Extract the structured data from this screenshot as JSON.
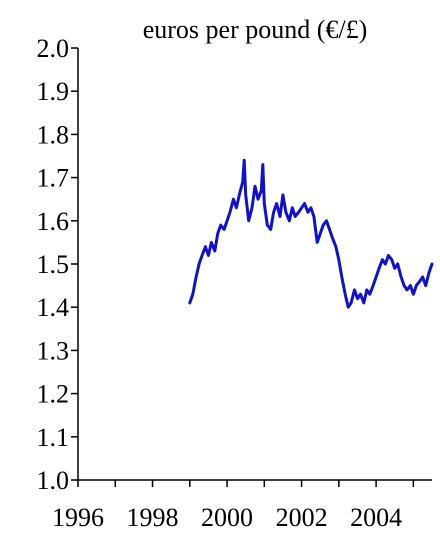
{
  "chart_data": {
    "type": "line",
    "title": "euros per pound (€/£)",
    "xlabel": "",
    "ylabel": "",
    "xlim": [
      1996,
      2005.5
    ],
    "ylim": [
      1.0,
      2.0
    ],
    "x_ticks": [
      1996,
      1998,
      2000,
      2002,
      2004
    ],
    "x_minor_ticks": [
      1997,
      1999,
      2001,
      2003,
      2005
    ],
    "y_ticks": [
      "1.0",
      "1.1",
      "1.2",
      "1.3",
      "1.4",
      "1.5",
      "1.6",
      "1.7",
      "1.8",
      "1.9",
      "2.0"
    ],
    "grid": false,
    "legend": "none",
    "series": [
      {
        "color": "#1010d0",
        "x": [
          1999.0,
          1999.08,
          1999.17,
          1999.25,
          1999.33,
          1999.42,
          1999.5,
          1999.58,
          1999.67,
          1999.75,
          1999.83,
          1999.92,
          2000.0,
          2000.08,
          2000.17,
          2000.25,
          2000.33,
          2000.42,
          2000.46,
          2000.5,
          2000.58,
          2000.67,
          2000.75,
          2000.83,
          2000.92,
          2000.96,
          2001.0,
          2001.08,
          2001.17,
          2001.25,
          2001.33,
          2001.42,
          2001.5,
          2001.58,
          2001.67,
          2001.75,
          2001.83,
          2001.92,
          2002.0,
          2002.08,
          2002.17,
          2002.25,
          2002.33,
          2002.42,
          2002.5,
          2002.58,
          2002.67,
          2002.75,
          2002.83,
          2002.92,
          2003.0,
          2003.08,
          2003.17,
          2003.25,
          2003.33,
          2003.42,
          2003.5,
          2003.58,
          2003.67,
          2003.75,
          2003.83,
          2003.92,
          2004.0,
          2004.08,
          2004.17,
          2004.25,
          2004.33,
          2004.42,
          2004.5,
          2004.58,
          2004.67,
          2004.75,
          2004.83,
          2004.92,
          2005.0,
          2005.08,
          2005.17,
          2005.25,
          2005.33,
          2005.42,
          2005.5
        ],
        "y": [
          1.41,
          1.43,
          1.47,
          1.5,
          1.52,
          1.54,
          1.52,
          1.55,
          1.53,
          1.57,
          1.59,
          1.58,
          1.6,
          1.62,
          1.65,
          1.63,
          1.66,
          1.69,
          1.74,
          1.66,
          1.6,
          1.63,
          1.68,
          1.65,
          1.67,
          1.73,
          1.64,
          1.59,
          1.58,
          1.62,
          1.64,
          1.61,
          1.66,
          1.62,
          1.6,
          1.63,
          1.61,
          1.62,
          1.63,
          1.64,
          1.62,
          1.63,
          1.61,
          1.55,
          1.57,
          1.59,
          1.6,
          1.58,
          1.56,
          1.54,
          1.51,
          1.47,
          1.43,
          1.4,
          1.41,
          1.44,
          1.42,
          1.43,
          1.41,
          1.44,
          1.43,
          1.45,
          1.47,
          1.49,
          1.51,
          1.5,
          1.52,
          1.51,
          1.49,
          1.5,
          1.47,
          1.45,
          1.44,
          1.45,
          1.43,
          1.45,
          1.46,
          1.47,
          1.45,
          1.48,
          1.5
        ]
      }
    ]
  }
}
